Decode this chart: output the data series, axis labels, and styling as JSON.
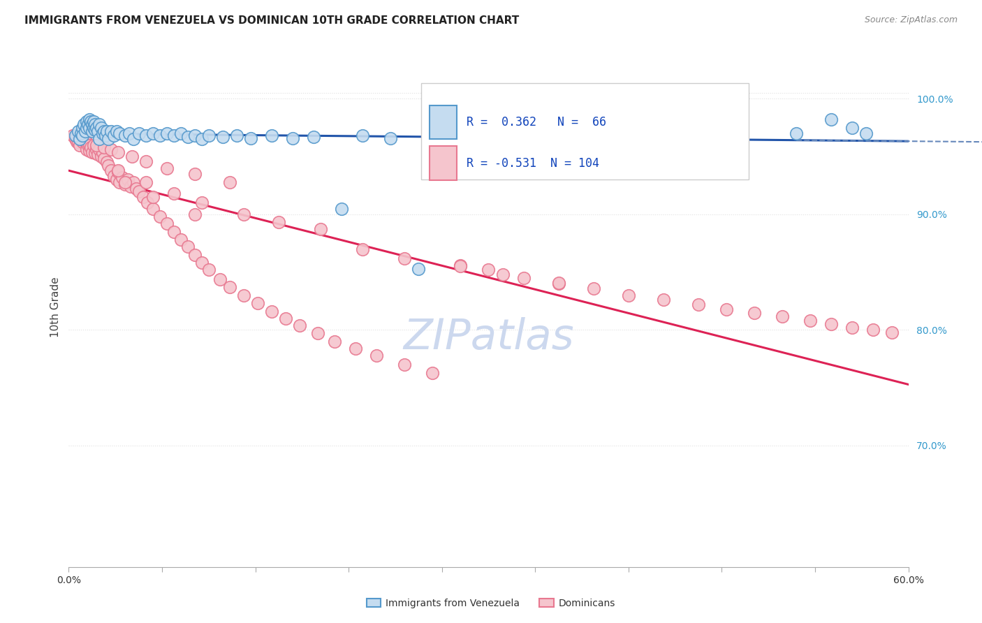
{
  "title": "IMMIGRANTS FROM VENEZUELA VS DOMINICAN 10TH GRADE CORRELATION CHART",
  "source": "Source: ZipAtlas.com",
  "ylabel": "10th Grade",
  "right_ytick_vals": [
    0.7,
    0.8,
    0.9,
    1.0
  ],
  "right_ytick_labels": [
    "70.0%",
    "80.0%",
    "90.0%",
    "100.0%"
  ],
  "xmin": 0.0,
  "xmax": 0.6,
  "ymin": 0.595,
  "ymax": 1.045,
  "R_blue": 0.362,
  "N_blue": 66,
  "R_pink": -0.531,
  "N_pink": 104,
  "blue_face": "#c5dcf0",
  "blue_edge": "#5599cc",
  "pink_face": "#f5c5cd",
  "pink_edge": "#e87890",
  "trend_blue_color": "#2255aa",
  "trend_blue_dash_color": "#6688bb",
  "trend_pink_color": "#dd2255",
  "watermark_color": "#ccd8ee",
  "title_color": "#222222",
  "source_color": "#888888",
  "legend_text_color": "#1144bb",
  "right_axis_color": "#3399cc",
  "grid_color": "#e0e0e0",
  "grid_style": ":",
  "blue_x": [
    0.005,
    0.007,
    0.008,
    0.009,
    0.01,
    0.01,
    0.011,
    0.012,
    0.013,
    0.013,
    0.014,
    0.015,
    0.015,
    0.016,
    0.017,
    0.017,
    0.018,
    0.018,
    0.019,
    0.019,
    0.02,
    0.021,
    0.022,
    0.022,
    0.023,
    0.024,
    0.025,
    0.026,
    0.027,
    0.028,
    0.03,
    0.032,
    0.034,
    0.036,
    0.04,
    0.043,
    0.046,
    0.05,
    0.055,
    0.06,
    0.065,
    0.07,
    0.075,
    0.08,
    0.085,
    0.09,
    0.095,
    0.1,
    0.11,
    0.12,
    0.13,
    0.145,
    0.16,
    0.175,
    0.195,
    0.21,
    0.23,
    0.25,
    0.3,
    0.36,
    0.43,
    0.47,
    0.52,
    0.545,
    0.56,
    0.57
  ],
  "blue_y": [
    0.968,
    0.972,
    0.965,
    0.97,
    0.975,
    0.968,
    0.978,
    0.972,
    0.98,
    0.975,
    0.978,
    0.982,
    0.975,
    0.98,
    0.978,
    0.972,
    0.98,
    0.975,
    0.978,
    0.973,
    0.975,
    0.972,
    0.978,
    0.965,
    0.975,
    0.97,
    0.972,
    0.968,
    0.972,
    0.965,
    0.972,
    0.968,
    0.972,
    0.97,
    0.968,
    0.97,
    0.965,
    0.97,
    0.968,
    0.97,
    0.968,
    0.97,
    0.968,
    0.97,
    0.967,
    0.968,
    0.965,
    0.968,
    0.967,
    0.968,
    0.966,
    0.968,
    0.966,
    0.967,
    0.905,
    0.968,
    0.966,
    0.853,
    0.968,
    0.968,
    0.983,
    0.985,
    0.97,
    0.982,
    0.975,
    0.97
  ],
  "pink_x": [
    0.003,
    0.005,
    0.006,
    0.007,
    0.008,
    0.009,
    0.01,
    0.01,
    0.011,
    0.012,
    0.012,
    0.013,
    0.013,
    0.014,
    0.015,
    0.015,
    0.016,
    0.017,
    0.018,
    0.019,
    0.02,
    0.021,
    0.022,
    0.023,
    0.024,
    0.025,
    0.027,
    0.028,
    0.03,
    0.032,
    0.034,
    0.035,
    0.036,
    0.038,
    0.04,
    0.042,
    0.044,
    0.046,
    0.048,
    0.05,
    0.053,
    0.056,
    0.06,
    0.065,
    0.07,
    0.075,
    0.08,
    0.085,
    0.09,
    0.095,
    0.1,
    0.108,
    0.115,
    0.125,
    0.135,
    0.145,
    0.155,
    0.165,
    0.178,
    0.19,
    0.205,
    0.22,
    0.24,
    0.26,
    0.28,
    0.3,
    0.325,
    0.35,
    0.375,
    0.4,
    0.425,
    0.45,
    0.47,
    0.49,
    0.51,
    0.53,
    0.545,
    0.56,
    0.575,
    0.588,
    0.035,
    0.055,
    0.075,
    0.095,
    0.125,
    0.15,
    0.18,
    0.04,
    0.06,
    0.09,
    0.02,
    0.025,
    0.03,
    0.035,
    0.045,
    0.055,
    0.07,
    0.09,
    0.115,
    0.21,
    0.24,
    0.28,
    0.31,
    0.35
  ],
  "pink_y": [
    0.968,
    0.965,
    0.963,
    0.962,
    0.96,
    0.965,
    0.97,
    0.963,
    0.968,
    0.968,
    0.963,
    0.962,
    0.956,
    0.96,
    0.96,
    0.955,
    0.958,
    0.954,
    0.96,
    0.953,
    0.956,
    0.952,
    0.956,
    0.95,
    0.954,
    0.948,
    0.945,
    0.942,
    0.938,
    0.933,
    0.93,
    0.937,
    0.928,
    0.932,
    0.926,
    0.93,
    0.924,
    0.928,
    0.922,
    0.92,
    0.915,
    0.91,
    0.905,
    0.898,
    0.892,
    0.885,
    0.878,
    0.872,
    0.865,
    0.858,
    0.852,
    0.844,
    0.837,
    0.83,
    0.823,
    0.816,
    0.81,
    0.804,
    0.797,
    0.79,
    0.784,
    0.778,
    0.77,
    0.763,
    0.856,
    0.852,
    0.845,
    0.84,
    0.836,
    0.83,
    0.826,
    0.822,
    0.818,
    0.815,
    0.812,
    0.808,
    0.805,
    0.802,
    0.8,
    0.798,
    0.938,
    0.928,
    0.918,
    0.91,
    0.9,
    0.893,
    0.887,
    0.928,
    0.915,
    0.9,
    0.96,
    0.958,
    0.956,
    0.954,
    0.95,
    0.946,
    0.94,
    0.935,
    0.928,
    0.87,
    0.862,
    0.855,
    0.848,
    0.841
  ]
}
